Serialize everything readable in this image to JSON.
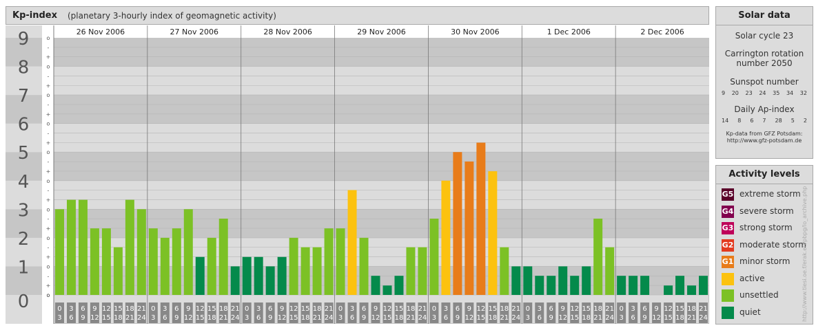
{
  "header": {
    "title": "Kp-index",
    "subtitle": "(planetary 3-hourly index of geomagnetic activity)"
  },
  "chart_data": {
    "type": "bar",
    "title": "Kp-index",
    "subtitle": "(planetary 3-hourly index of geomagnetic activity)",
    "ylim": [
      0,
      9
    ],
    "y_ticks": [
      "0",
      "1",
      "2",
      "3",
      "4",
      "5",
      "6",
      "7",
      "8",
      "9"
    ],
    "minor_tick_labels": [
      "+",
      "o",
      "-"
    ],
    "days": [
      {
        "label": "26 Nov 2006",
        "values": [
          3.0,
          3.33,
          3.33,
          2.33,
          2.33,
          1.67,
          3.33,
          3.0
        ],
        "levels": [
          "unsettled",
          "unsettled",
          "unsettled",
          "unsettled",
          "unsettled",
          "unsettled",
          "unsettled",
          "unsettled"
        ]
      },
      {
        "label": "27 Nov 2006",
        "values": [
          2.33,
          2.0,
          2.33,
          3.0,
          1.33,
          2.0,
          2.67,
          1.0
        ],
        "levels": [
          "unsettled",
          "unsettled",
          "unsettled",
          "unsettled",
          "quiet",
          "unsettled",
          "unsettled",
          "quiet"
        ]
      },
      {
        "label": "28 Nov 2006",
        "values": [
          1.33,
          1.33,
          1.0,
          1.33,
          2.0,
          1.67,
          1.67,
          2.33
        ],
        "levels": [
          "quiet",
          "quiet",
          "quiet",
          "quiet",
          "unsettled",
          "unsettled",
          "unsettled",
          "unsettled"
        ]
      },
      {
        "label": "29 Nov 2006",
        "values": [
          2.33,
          3.67,
          2.0,
          0.67,
          0.33,
          0.67,
          1.67,
          1.67
        ],
        "levels": [
          "unsettled",
          "active",
          "unsettled",
          "quiet",
          "quiet",
          "quiet",
          "unsettled",
          "unsettled"
        ]
      },
      {
        "label": "30 Nov 2006",
        "values": [
          2.67,
          4.0,
          5.0,
          4.67,
          5.33,
          4.33,
          1.67,
          1.0
        ],
        "levels": [
          "unsettled",
          "active",
          "minor storm",
          "minor storm",
          "minor storm",
          "active",
          "unsettled",
          "quiet"
        ]
      },
      {
        "label": "1 Dec 2006",
        "values": [
          1.0,
          0.67,
          0.67,
          1.0,
          0.67,
          1.0,
          2.67,
          1.67
        ],
        "levels": [
          "quiet",
          "quiet",
          "quiet",
          "quiet",
          "quiet",
          "quiet",
          "unsettled",
          "unsettled"
        ]
      },
      {
        "label": "2 Dec 2006",
        "values": [
          0.67,
          0.67,
          0.67,
          0.0,
          0.33,
          0.67,
          0.33,
          0.67
        ],
        "levels": [
          "quiet",
          "quiet",
          "quiet",
          "quiet",
          "quiet",
          "quiet",
          "quiet",
          "quiet"
        ]
      }
    ],
    "hour_labels": [
      [
        "0",
        "3"
      ],
      [
        "3",
        "6"
      ],
      [
        "6",
        "9"
      ],
      [
        "9",
        "12"
      ],
      [
        "12",
        "15"
      ],
      [
        "15",
        "18"
      ],
      [
        "18",
        "21"
      ],
      [
        "21",
        "24"
      ]
    ]
  },
  "solar": {
    "title": "Solar data",
    "cycle": "Solar cycle 23",
    "carrington_1": "Carrington rotation",
    "carrington_2": "number 2050",
    "sunspot_label": "Sunspot number",
    "sunspot_values": [
      "9",
      "20",
      "23",
      "24",
      "35",
      "34",
      "32"
    ],
    "ap_label": "Daily Ap-index",
    "ap_values": [
      "14",
      "8",
      "6",
      "7",
      "28",
      "5",
      "2"
    ],
    "source_1": "Kp-data from GFZ Potsdam:",
    "source_2": "http://www.gfz-potsdam.de"
  },
  "activity": {
    "title": "Activity levels",
    "items": [
      {
        "code": "G5",
        "label": "extreme storm",
        "color": "#5a0029"
      },
      {
        "code": "G4",
        "label": "severe storm",
        "color": "#82004e"
      },
      {
        "code": "G3",
        "label": "strong storm",
        "color": "#be0059"
      },
      {
        "code": "G2",
        "label": "moderate storm",
        "color": "#e33a1f"
      },
      {
        "code": "G1",
        "label": "minor storm",
        "color": "#e87c1a"
      },
      {
        "code": "",
        "label": "active",
        "color": "#fcc20f"
      },
      {
        "code": "",
        "label": "unsettled",
        "color": "#7cc125"
      },
      {
        "code": "",
        "label": "quiet",
        "color": "#048a4b"
      }
    ]
  },
  "colors": {
    "quiet": "#048a4b",
    "unsettled": "#7cc125",
    "active": "#fcc20f",
    "minor storm": "#e87c1a"
  },
  "watermark": "http://www.tiesi.oe.f/erak.eu/pbpg/lo_archive.php"
}
